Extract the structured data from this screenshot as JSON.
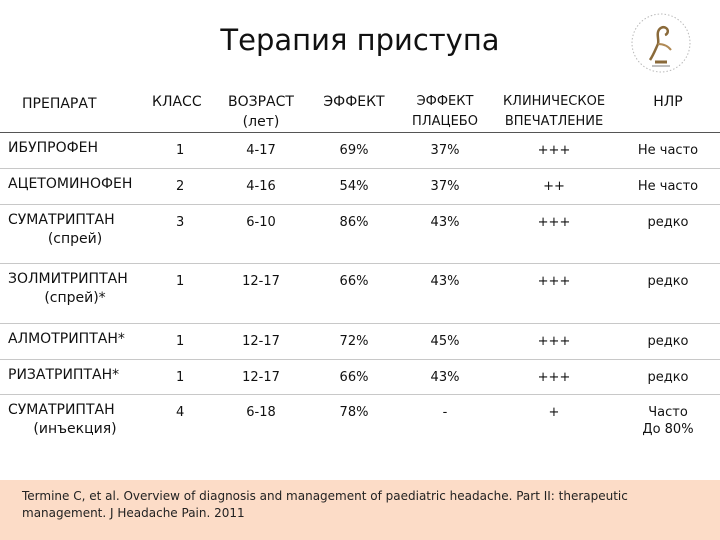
{
  "title": "Терапия приступа",
  "table": {
    "header": {
      "drug": "ПРЕПАРАТ",
      "class": "КЛАСС",
      "age_l1": "ВОЗРАСТ",
      "age_l2": "(лет)",
      "effect": "ЭФФЕКТ",
      "placebo_l1": "ЭФФЕКТ",
      "placebo_l2": "ПЛАЦЕБО",
      "clinical_l1": "КЛИНИЧЕСКОЕ",
      "clinical_l2": "ВПЕЧАТЛЕНИЕ",
      "adverse": "НЛР"
    },
    "rows": [
      {
        "drug": "ИБУПРОФЕН",
        "drug_sub": "",
        "class": "1",
        "age": "4-17",
        "effect": "69%",
        "placebo": "37%",
        "clinical": "+++",
        "adverse_l1": "Не часто",
        "adverse_l2": ""
      },
      {
        "drug": "АЦЕТОМИНОФЕН",
        "drug_sub": "",
        "class": "2",
        "age": "4-16",
        "effect": "54%",
        "placebo": "37%",
        "clinical": "++",
        "adverse_l1": "Не часто",
        "adverse_l2": ""
      },
      {
        "drug": "СУМАТРИПТАН",
        "drug_sub": "(спрей)",
        "class": "3",
        "age": "6-10",
        "effect": "86%",
        "placebo": "43%",
        "clinical": "+++",
        "adverse_l1": "редко",
        "adverse_l2": ""
      },
      {
        "drug": "ЗОЛМИТРИПТАН",
        "drug_sub": "(спрей)*",
        "class": "1",
        "age": "12-17",
        "effect": "66%",
        "placebo": "43%",
        "clinical": "+++",
        "adverse_l1": "редко",
        "adverse_l2": ""
      },
      {
        "drug": "АЛМОТРИПТАН*",
        "drug_sub": "",
        "class": "1",
        "age": "12-17",
        "effect": "72%",
        "placebo": "45%",
        "clinical": "+++",
        "adverse_l1": "редко",
        "adverse_l2": ""
      },
      {
        "drug": "РИЗАТРИПТАН*",
        "drug_sub": "",
        "class": "1",
        "age": "12-17",
        "effect": "66%",
        "placebo": "43%",
        "clinical": "+++",
        "adverse_l1": "редко",
        "adverse_l2": ""
      },
      {
        "drug": "СУМАТРИПТАН",
        "drug_sub": "(инъекция)",
        "class": "4",
        "age": "6-18",
        "effect": "78%",
        "placebo": "-",
        "clinical": "+",
        "adverse_l1": "Часто",
        "adverse_l2": "До 80%"
      }
    ]
  },
  "footer": {
    "citation": "Termine C, et al. Overview of diagnosis and management of paediatric headache. Part II: therapeutic management. J Headache Pain. 2011"
  },
  "colors": {
    "footer_bg": "#fcdcc7",
    "row_rule": "#c8c8c8",
    "header_rule": "#555555",
    "logo_accent": "#8a6a3a"
  },
  "icons": {
    "logo": "emblem-logo"
  }
}
